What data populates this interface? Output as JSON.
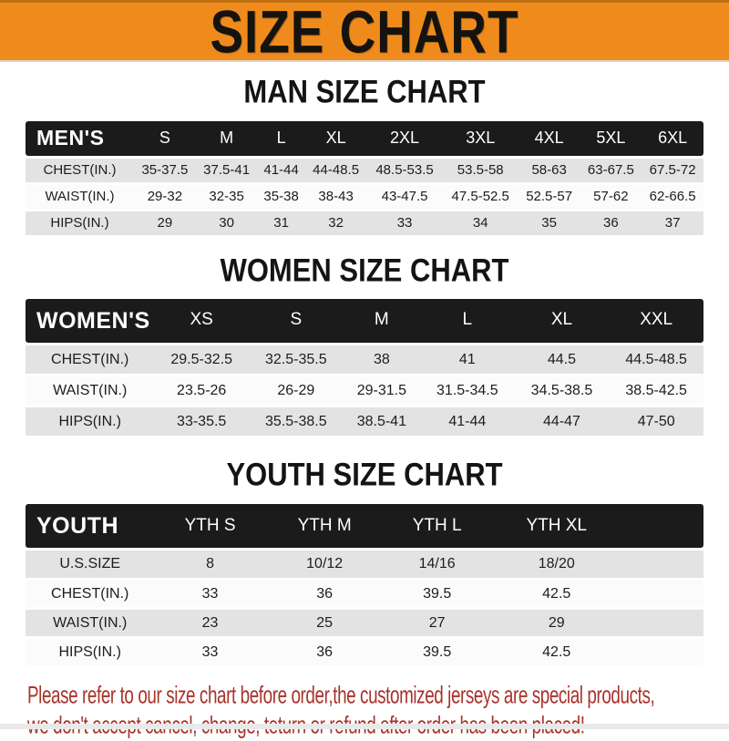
{
  "banner": {
    "title": "SIZE CHART"
  },
  "colors": {
    "banner_orange": "#EF8B1D",
    "table_header_black": "#1B1B1B",
    "row_stripe_gray": "#E3E3E3",
    "note_red": "#A8332B"
  },
  "sections": [
    {
      "title": "MAN SIZE CHART",
      "label": "MEN'S",
      "columns": [
        "S",
        "M",
        "L",
        "XL",
        "2XL",
        "3XL",
        "4XL",
        "5XL",
        "6XL"
      ],
      "rows": [
        {
          "label": "CHEST(IN.)",
          "values": [
            "35-37.5",
            "37.5-41",
            "41-44",
            "44-48.5",
            "48.5-53.5",
            "53.5-58",
            "58-63",
            "63-67.5",
            "67.5-72"
          ]
        },
        {
          "label": "WAIST(IN.)",
          "values": [
            "29-32",
            "32-35",
            "35-38",
            "38-43",
            "43-47.5",
            "47.5-52.5",
            "52.5-57",
            "57-62",
            "62-66.5"
          ]
        },
        {
          "label": "HIPS(IN.)",
          "values": [
            "29",
            "30",
            "31",
            "32",
            "33",
            "34",
            "35",
            "36",
            "37"
          ]
        }
      ]
    },
    {
      "title": "WOMEN SIZE CHART",
      "label": "WOMEN'S",
      "columns": [
        "XS",
        "S",
        "M",
        "L",
        "XL",
        "XXL"
      ],
      "rows": [
        {
          "label": "CHEST(IN.)",
          "values": [
            "29.5-32.5",
            "32.5-35.5",
            "38",
            "41",
            "44.5",
            "44.5-48.5"
          ]
        },
        {
          "label": "WAIST(IN.)",
          "values": [
            "23.5-26",
            "26-29",
            "29-31.5",
            "31.5-34.5",
            "34.5-38.5",
            "38.5-42.5"
          ]
        },
        {
          "label": "HIPS(IN.)",
          "values": [
            "33-35.5",
            "35.5-38.5",
            "38.5-41",
            "41-44",
            "44-47",
            "47-50"
          ]
        }
      ]
    },
    {
      "title": "YOUTH SIZE CHART",
      "label": "YOUTH",
      "columns": [
        "YTH S",
        "YTH M",
        "YTH L",
        "YTH XL",
        ""
      ],
      "rows": [
        {
          "label": "U.S.SIZE",
          "values": [
            "8",
            "10/12",
            "14/16",
            "18/20",
            ""
          ]
        },
        {
          "label": "CHEST(IN.)",
          "values": [
            "33",
            "36",
            "39.5",
            "42.5",
            ""
          ]
        },
        {
          "label": "WAIST(IN.)",
          "values": [
            "23",
            "25",
            "27",
            "29",
            ""
          ]
        },
        {
          "label": "HIPS(IN.)",
          "values": [
            "33",
            "36",
            "39.5",
            "42.5",
            ""
          ]
        }
      ]
    }
  ],
  "footer": {
    "line1": "Please refer to our size chart before order,the customized jerseys are special products,",
    "line2": "we don't accept cancel, change, teturn or refund after order has been placed!"
  }
}
